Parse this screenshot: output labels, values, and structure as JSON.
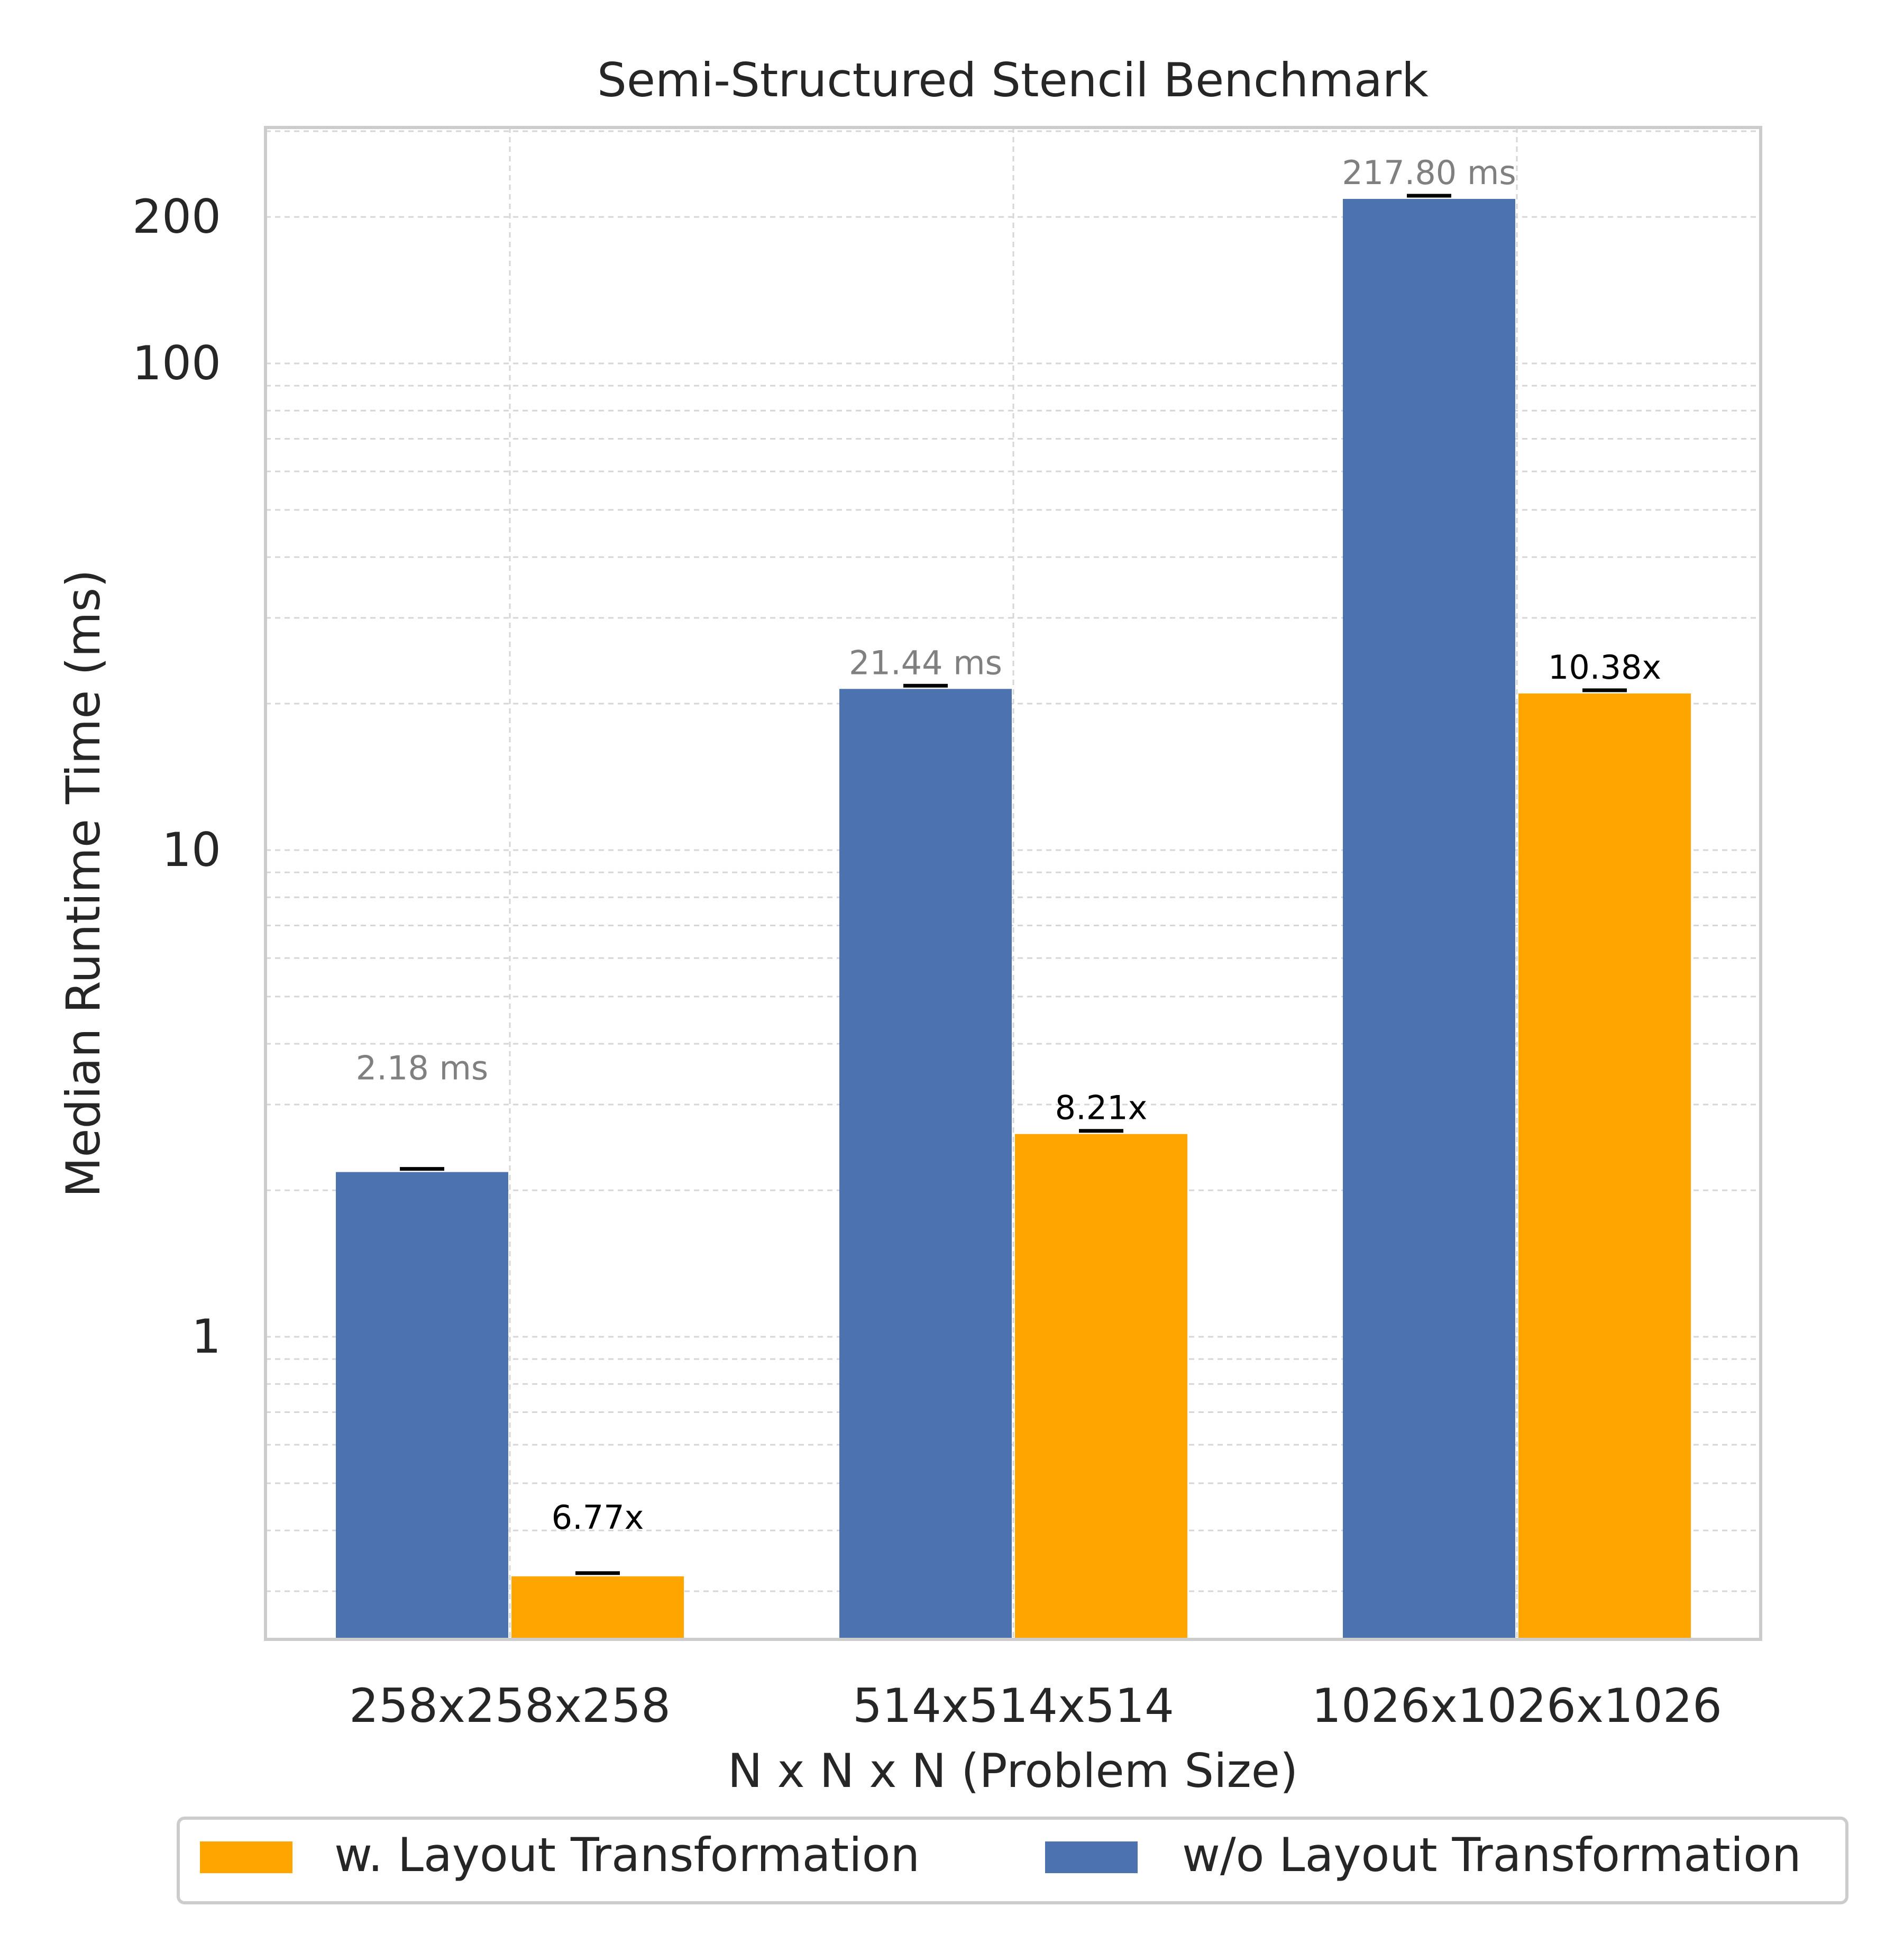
{
  "chart_data": {
    "type": "bar",
    "title": "Semi-Structured Stencil Benchmark",
    "xlabel": "N x N x N (Problem Size)",
    "ylabel": "Median Runtime Time (ms)",
    "yscale": "log",
    "ylim": [
      0.2,
      300
    ],
    "yticks": [
      1,
      10,
      100,
      200
    ],
    "ytick_labels": [
      "1",
      "10",
      "100",
      "200"
    ],
    "grid": true,
    "legend_position": "bottom-center",
    "categories": [
      "258x258x258",
      "514x514x514",
      "1026x1026x1026"
    ],
    "series": [
      {
        "name": "w/o Layout Transformation",
        "color": "#4c72b0",
        "values": [
          2.18,
          21.44,
          217.8
        ],
        "labels": [
          "2.18 ms",
          "21.44 ms",
          "217.80 ms"
        ],
        "label_color": "#808080"
      },
      {
        "name": "w. Layout Transformation",
        "color": "#ffa500",
        "values": [
          0.322,
          2.61,
          20.98
        ],
        "labels": [
          "6.77x",
          "8.21x",
          "10.38x"
        ],
        "label_color": "#000000"
      }
    ],
    "legend_order": [
      "w. Layout Transformation",
      "w/o Layout Transformation"
    ]
  }
}
